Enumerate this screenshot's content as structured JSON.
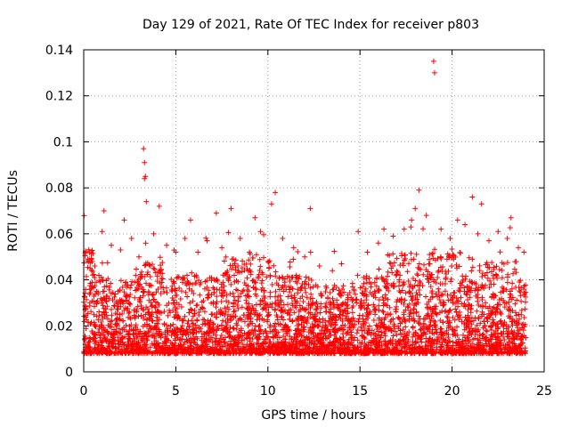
{
  "chart_data": {
    "type": "scatter",
    "title": "Day 129 of 2021, Rate Of TEC Index for receiver p803",
    "xlabel": "GPS time / hours",
    "ylabel": "ROTI / TECUs",
    "xlim": [
      0,
      25
    ],
    "ylim": [
      0,
      0.14
    ],
    "x_ticks": [
      "0",
      "5",
      "10",
      "15",
      "20",
      "25"
    ],
    "y_ticks": [
      "0",
      "0.02",
      "0.04",
      "0.06",
      "0.08",
      "0.1",
      "0.12",
      "0.14"
    ],
    "grid": true,
    "marker": "+",
    "color": "#ff0000",
    "series": [
      {
        "name": "ROTI",
        "description": "dense band of ROTI values, mostly 0.005-0.05 TECU/min across 0-24 h",
        "points": [
          [
            3.25,
            0.097
          ],
          [
            3.3,
            0.091
          ],
          [
            3.35,
            0.085
          ],
          [
            3.3,
            0.084
          ],
          [
            3.4,
            0.074
          ],
          [
            19.0,
            0.135
          ],
          [
            19.05,
            0.13
          ],
          [
            18.2,
            0.079
          ],
          [
            10.4,
            0.078
          ],
          [
            21.1,
            0.076
          ],
          [
            21.6,
            0.073
          ],
          [
            18.0,
            0.071
          ],
          [
            12.3,
            0.071
          ],
          [
            10.2,
            0.073
          ],
          [
            4.1,
            0.072
          ],
          [
            1.1,
            0.07
          ],
          [
            7.2,
            0.069
          ],
          [
            8.0,
            0.071
          ],
          [
            9.3,
            0.067
          ],
          [
            23.2,
            0.067
          ],
          [
            20.7,
            0.064
          ],
          [
            5.8,
            0.066
          ],
          [
            2.2,
            0.066
          ],
          [
            14.9,
            0.061
          ],
          [
            16.3,
            0.062
          ],
          [
            0.1,
            0.052
          ],
          [
            0.3,
            0.049
          ],
          [
            0.6,
            0.046
          ],
          [
            1.0,
            0.061
          ],
          [
            1.5,
            0.055
          ],
          [
            2.0,
            0.053
          ],
          [
            2.6,
            0.058
          ],
          [
            3.0,
            0.05
          ],
          [
            3.8,
            0.06
          ],
          [
            4.5,
            0.055
          ],
          [
            5.0,
            0.052
          ],
          [
            5.5,
            0.058
          ],
          [
            6.2,
            0.052
          ],
          [
            6.7,
            0.057
          ],
          [
            7.5,
            0.054
          ],
          [
            8.5,
            0.058
          ],
          [
            9.0,
            0.052
          ],
          [
            9.6,
            0.061
          ],
          [
            10.8,
            0.058
          ],
          [
            11.4,
            0.054
          ],
          [
            12.0,
            0.05
          ],
          [
            12.8,
            0.046
          ],
          [
            13.5,
            0.044
          ],
          [
            14.0,
            0.047
          ],
          [
            15.4,
            0.052
          ],
          [
            16.0,
            0.056
          ],
          [
            16.8,
            0.059
          ],
          [
            17.4,
            0.062
          ],
          [
            17.8,
            0.066
          ],
          [
            18.6,
            0.068
          ],
          [
            19.4,
            0.062
          ],
          [
            19.9,
            0.058
          ],
          [
            20.3,
            0.066
          ],
          [
            21.4,
            0.06
          ],
          [
            22.0,
            0.057
          ],
          [
            22.5,
            0.061
          ],
          [
            23.0,
            0.058
          ],
          [
            23.6,
            0.054
          ],
          [
            23.9,
            0.052
          ]
        ]
      }
    ]
  }
}
